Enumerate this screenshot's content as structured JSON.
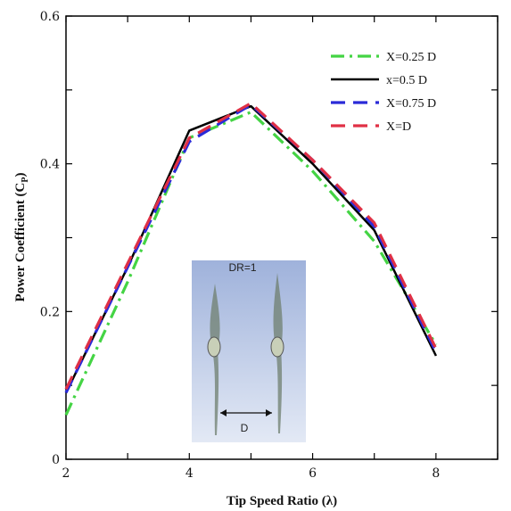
{
  "chart_data": {
    "type": "line",
    "xlabel": "Tip Speed Ratio (λ)",
    "ylabel": "Power Coefficient (C",
    "ylabel_sub": "P",
    "ylabel_close": ")",
    "xlim": [
      2,
      9
    ],
    "ylim": [
      0,
      0.6
    ],
    "xticks": [
      2,
      4,
      6,
      8
    ],
    "yticks": [
      0,
      0.2,
      0.4,
      0.6
    ],
    "xtick_labels": [
      "2",
      "4",
      "6",
      "8"
    ],
    "ytick_labels": [
      "0",
      "0.2",
      "0.4",
      "0.6"
    ],
    "grid": false,
    "legend_position": "top-right",
    "x": [
      2,
      3,
      4,
      5,
      6,
      7,
      8
    ],
    "series": [
      {
        "name": "X=0.25 D",
        "color": "#44d444",
        "dash": "dashdot",
        "values": [
          0.06,
          0.24,
          0.435,
          0.47,
          0.39,
          0.295,
          0.155
        ]
      },
      {
        "name": "x=0.5 D",
        "color": "#000000",
        "dash": "solid",
        "values": [
          0.09,
          0.26,
          0.445,
          0.478,
          0.4,
          0.31,
          0.14
        ]
      },
      {
        "name": "X=0.75 D",
        "color": "#2a2ad8",
        "dash": "dash",
        "values": [
          0.09,
          0.26,
          0.43,
          0.48,
          0.405,
          0.315,
          0.145
        ]
      },
      {
        "name": "X=D",
        "color": "#e03045",
        "dash": "dash",
        "values": [
          0.095,
          0.265,
          0.435,
          0.482,
          0.405,
          0.32,
          0.15
        ]
      }
    ],
    "inset": {
      "title": "DR=1",
      "dimension_label": "D"
    }
  }
}
